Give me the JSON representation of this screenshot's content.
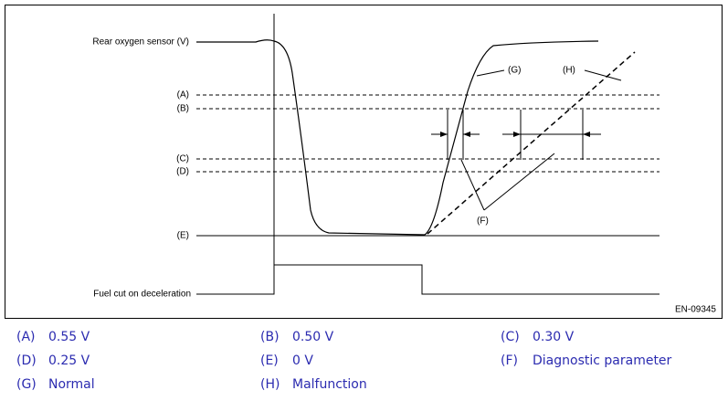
{
  "diagram": {
    "signal_label": "Rear oxygen sensor (V)",
    "levels": [
      "(A)",
      "(B)",
      "(C)",
      "(D)",
      "(E)"
    ],
    "fuel_cut_label": "Fuel cut on deceleration",
    "callouts": [
      "(G)",
      "(H)",
      "(F)"
    ],
    "figure_id": "EN-09345"
  },
  "legend": [
    {
      "key": "(A)",
      "text": "0.55 V"
    },
    {
      "key": "(B)",
      "text": "0.50 V"
    },
    {
      "key": "(C)",
      "text": "0.30 V"
    },
    {
      "key": "(D)",
      "text": "0.25 V"
    },
    {
      "key": "(E)",
      "text": "0 V"
    },
    {
      "key": "(F)",
      "text": "Diagnostic parameter"
    },
    {
      "key": "(G)",
      "text": "Normal"
    },
    {
      "key": "(H)",
      "text": "Malfunction"
    }
  ]
}
